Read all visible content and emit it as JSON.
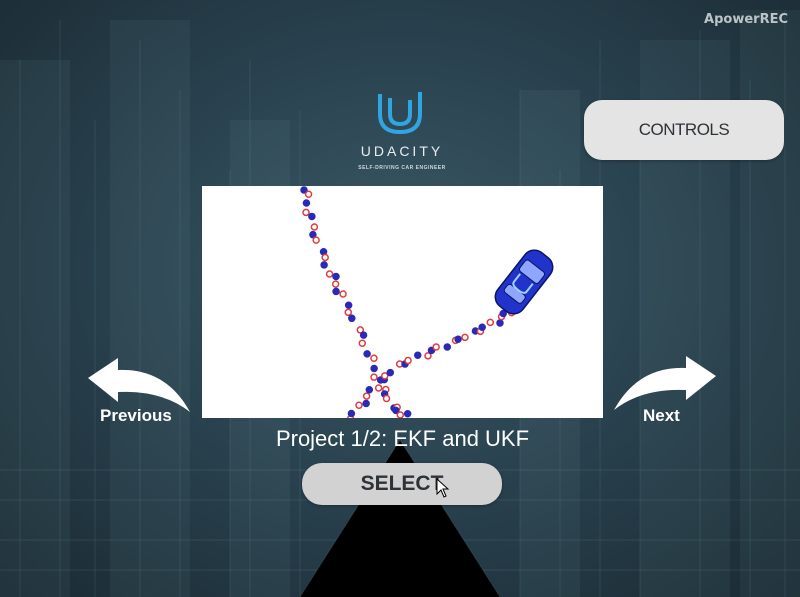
{
  "watermark": "ApowerREC",
  "logo": {
    "word": "UDACITY",
    "subtitle": "SELF-DRIVING CAR ENGINEER",
    "icon": "udacity-u-icon"
  },
  "controls_button": {
    "label": "CONTROLS"
  },
  "preview": {
    "description_icon": "car-icon",
    "marker_colors": {
      "measurement": "#e23b3b",
      "estimate": "#2a2ab8"
    }
  },
  "navigation": {
    "previous_label": "Previous",
    "next_label": "Next",
    "previous_icon": "curved-left-arrow-icon",
    "next_icon": "curved-right-arrow-icon"
  },
  "project_title": "Project 1/2: EKF and UKF",
  "select_button": {
    "label": "SELECT"
  },
  "cursor_icon": "mouse-pointer-icon"
}
